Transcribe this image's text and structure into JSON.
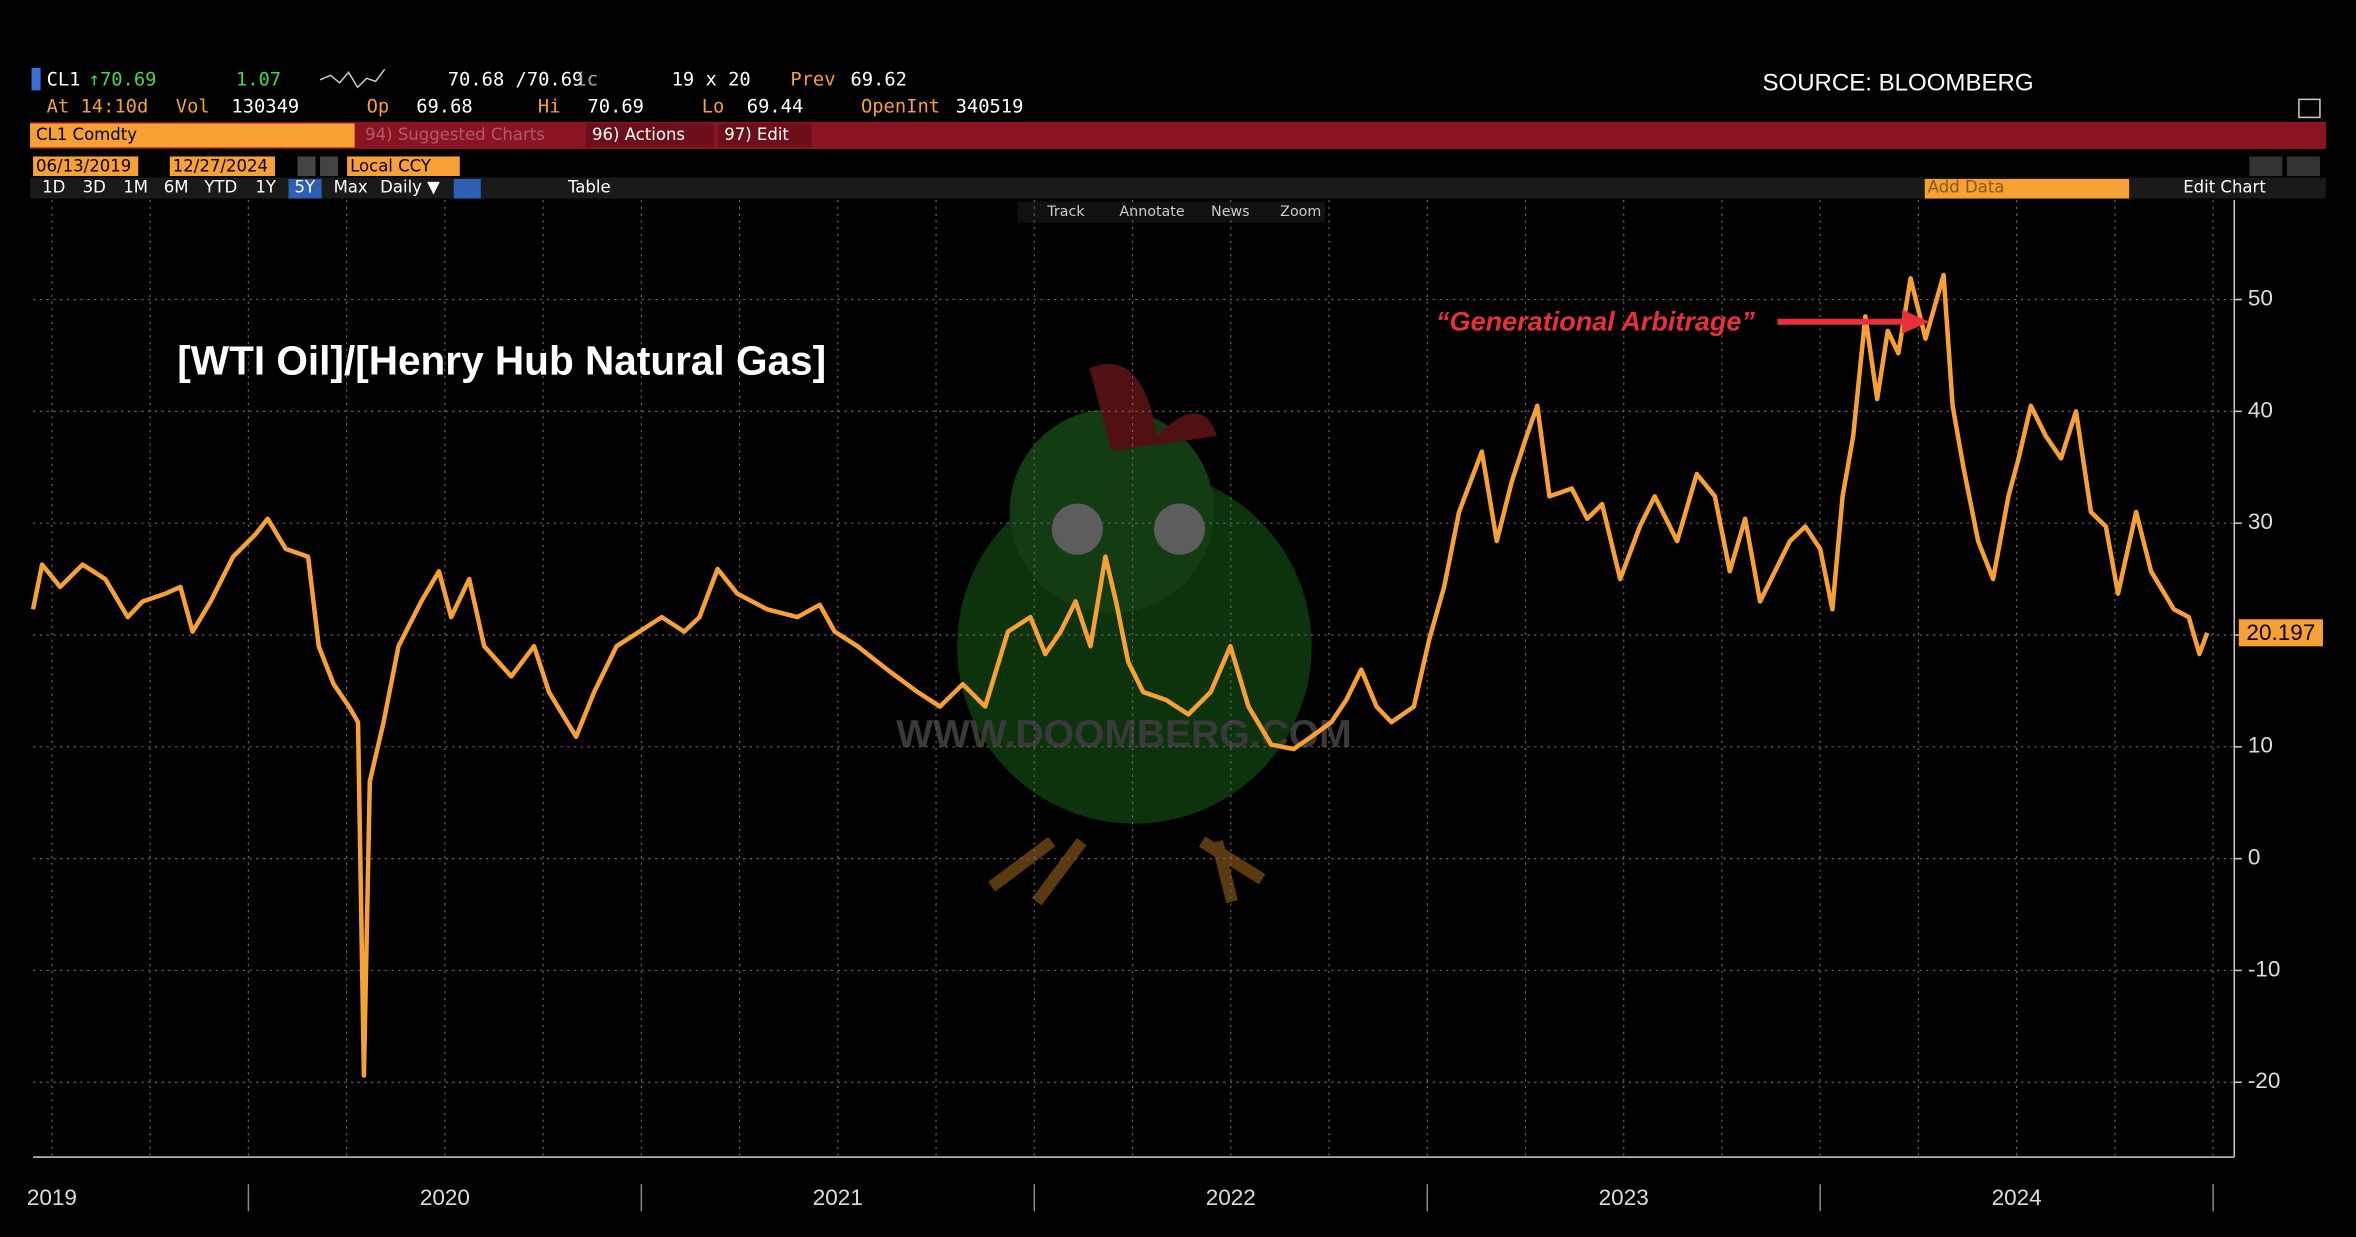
{
  "header": {
    "ticker": "CL1",
    "last": "↑70.69",
    "change": "1.07",
    "bid_ask": "70.68 /70.69",
    "bid_ask_suffix": "ic",
    "size": "19 x 20",
    "prev_label": "Prev",
    "prev": "69.62",
    "time": "At 14:10d",
    "vol_label": "Vol",
    "vol": "130349",
    "open_label": "Op",
    "open": "69.68",
    "high_label": "Hi",
    "high": "70.69",
    "low_label": "Lo",
    "low": "69.44",
    "oi_label": "OpenInt",
    "oi": "340519",
    "source": "SOURCE: BLOOMBERG"
  },
  "toolbar": {
    "security": "CL1 Comdty",
    "suggested": "94) Suggested Charts",
    "actions": "96) Actions",
    "edit": "97) Edit",
    "start_date": "06/13/2019",
    "end_date": "12/27/2024",
    "currency": "Local CCY",
    "periods": [
      "1D",
      "3D",
      "1M",
      "6M",
      "YTD",
      "1Y",
      "5Y",
      "Max"
    ],
    "frequency": "Daily ▼",
    "table": "Table",
    "add_data": "Add Data",
    "edit_chart": "Edit Chart",
    "tools": [
      "Track",
      "Annotate",
      "News",
      "Zoom"
    ]
  },
  "chart_data": {
    "type": "line",
    "title": "[WTI Oil]/[Henry Hub Natural Gas]",
    "annotation": "“Generational Arbitrage”",
    "watermark": "WWW.DOOMBERG.COM",
    "x": [
      2019.452,
      2019.475,
      2019.521,
      2019.578,
      2019.636,
      2019.693,
      2019.731,
      2019.789,
      2019.827,
      2019.858,
      2019.904,
      2019.961,
      2020.018,
      2020.049,
      2020.095,
      2020.152,
      2020.179,
      2020.217,
      2020.256,
      2020.279,
      2020.294,
      2020.309,
      2020.344,
      2020.382,
      2020.44,
      2020.485,
      2020.516,
      2020.562,
      2020.6,
      2020.669,
      2020.727,
      2020.765,
      2020.834,
      2020.88,
      2020.937,
      2020.995,
      2021.052,
      2021.109,
      2021.148,
      2021.194,
      2021.244,
      2021.32,
      2021.397,
      2021.454,
      2021.492,
      2021.55,
      2021.626,
      2021.703,
      2021.76,
      2021.818,
      2021.875,
      2021.933,
      2021.99,
      2022.028,
      2022.067,
      2022.105,
      2022.143,
      2022.181,
      2022.208,
      2022.239,
      2022.277,
      2022.335,
      2022.392,
      2022.449,
      2022.499,
      2022.545,
      2022.603,
      2022.66,
      2022.717,
      2022.756,
      2022.794,
      2022.832,
      2022.871,
      2022.909,
      2022.966,
      2023.005,
      2023.043,
      2023.081,
      2023.139,
      2023.177,
      2023.215,
      2023.253,
      2023.28,
      2023.311,
      2023.368,
      2023.407,
      2023.445,
      2023.491,
      2023.541,
      2023.579,
      2023.636,
      2023.686,
      2023.732,
      2023.77,
      2023.809,
      2023.847,
      2023.885,
      2023.923,
      2023.962,
      2024.0,
      2024.031,
      2024.057,
      2024.084,
      2024.115,
      2024.145,
      2024.172,
      2024.199,
      2024.23,
      2024.268,
      2024.314,
      2024.337,
      2024.364,
      2024.402,
      2024.44,
      2024.479,
      2024.505,
      2024.536,
      2024.574,
      2024.613,
      2024.651,
      2024.689,
      2024.727,
      2024.758,
      2024.804,
      2024.842,
      2024.9,
      2024.938,
      2024.965,
      2024.985
    ],
    "series": [
      {
        "color": "#f7a033",
        "values": [
          22.3,
          26.3,
          24.3,
          26.3,
          25,
          21.6,
          23,
          23.7,
          24.3,
          20.3,
          23,
          27,
          29,
          30.4,
          27.7,
          27,
          19,
          15.6,
          13.6,
          12.2,
          -19.4,
          6.9,
          12.2,
          19,
          23,
          25.7,
          21.6,
          25,
          19,
          16.3,
          19,
          14.9,
          10.9,
          14.9,
          19,
          20.3,
          21.6,
          20.3,
          21.6,
          25.9,
          23.7,
          22.3,
          21.6,
          22.7,
          20.3,
          19,
          16.9,
          14.9,
          13.6,
          15.6,
          13.6,
          20.3,
          21.6,
          18.3,
          20.3,
          23,
          19,
          27,
          23,
          17.6,
          14.9,
          14.2,
          12.9,
          14.9,
          19,
          13.6,
          10.2,
          9.8,
          11.2,
          12.2,
          14.2,
          16.9,
          13.6,
          12.2,
          13.6,
          19.6,
          24.3,
          31,
          36.4,
          28.4,
          33.7,
          37.8,
          40.5,
          32.4,
          33.1,
          30.4,
          31.7,
          25,
          29.7,
          32.4,
          28.4,
          34.4,
          32.4,
          25.7,
          30.4,
          23,
          25.7,
          28.4,
          29.7,
          27.7,
          22.3,
          32.4,
          37.8,
          48.5,
          41.1,
          47.2,
          45.2,
          51.9,
          46.5,
          52.2,
          40.5,
          35.1,
          28.4,
          25,
          32.4,
          35.8,
          40.5,
          37.8,
          35.8,
          40,
          31,
          29.7,
          23.7,
          31,
          25.7,
          22.3,
          21.6,
          18.3,
          20.197
        ]
      }
    ],
    "xlim": [
      2019.452,
      2024.985
    ],
    "xticks": [
      {
        "value": 2019.5,
        "label": "2019"
      },
      {
        "value": 2020.5,
        "label": "2020"
      },
      {
        "value": 2021.5,
        "label": "2021"
      },
      {
        "value": 2022.5,
        "label": "2022"
      },
      {
        "value": 2023.5,
        "label": "2023"
      },
      {
        "value": 2024.5,
        "label": "2024"
      }
    ],
    "ylim": [
      -26.7,
      58.9
    ],
    "yticks": [
      -20,
      -10,
      0,
      10,
      20,
      30,
      40,
      50
    ],
    "grid": true
  }
}
